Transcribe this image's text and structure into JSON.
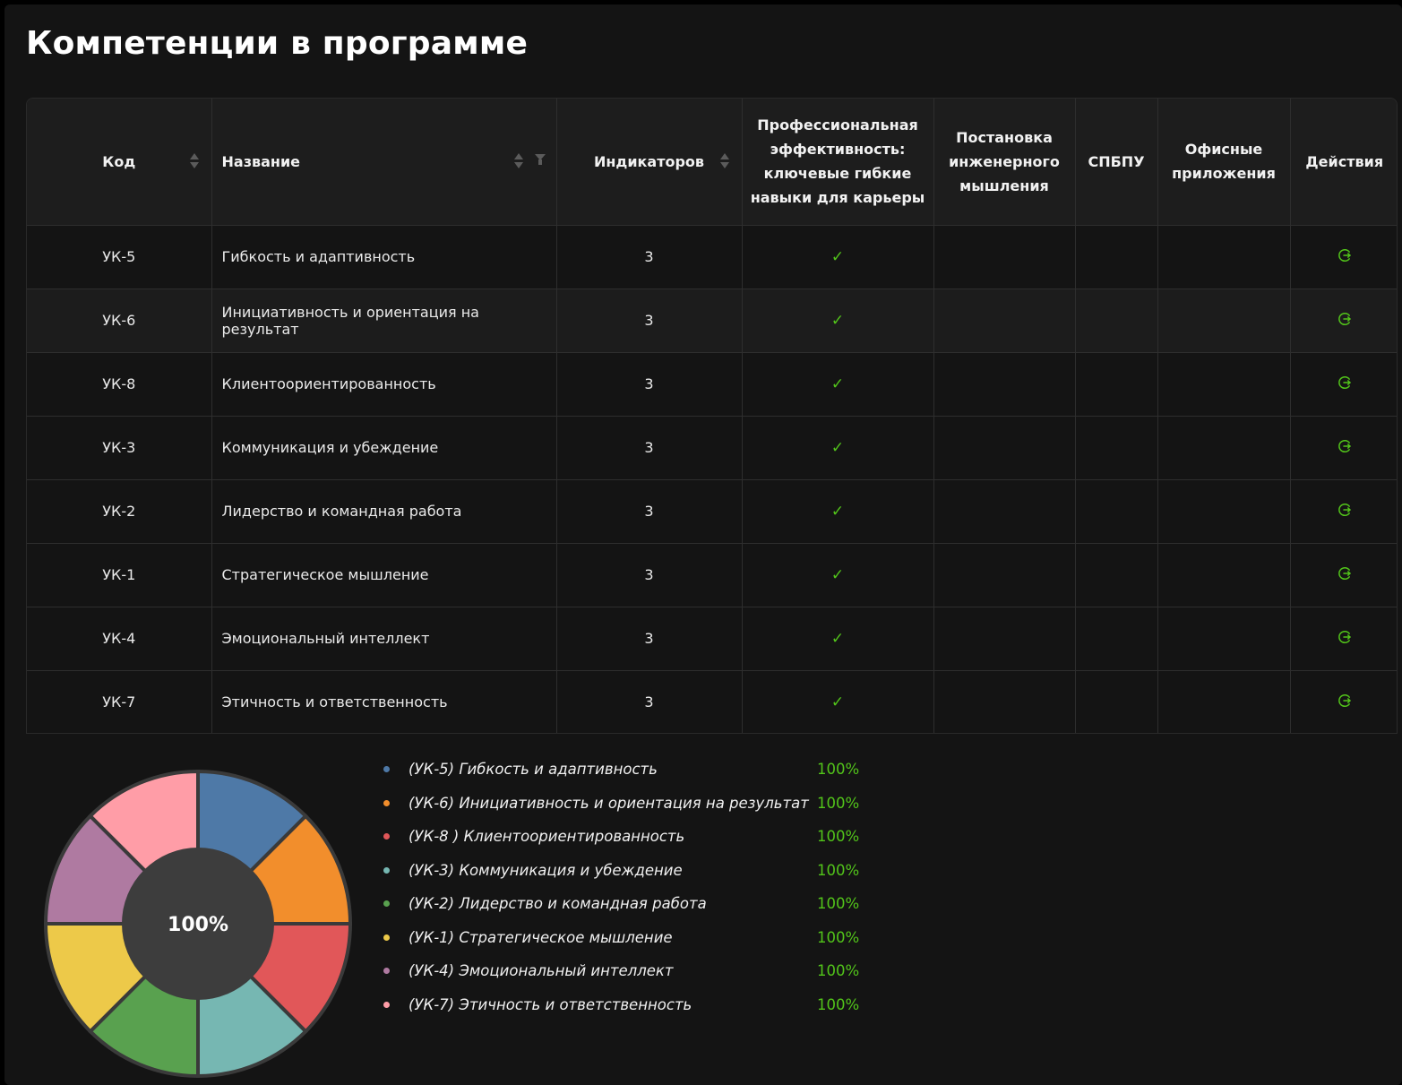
{
  "page_title": "Компетенции в программе",
  "table": {
    "headers": {
      "code": "Код",
      "name": "Название",
      "indicators": "Индикаторов",
      "course1": "Профессиональная эффективность: ключевые гибкие навыки для карьеры",
      "course2": "Постановка инженерного мышления",
      "course3": "СПБПУ",
      "course4": "Офисные приложения",
      "actions": "Действия"
    },
    "rows": [
      {
        "code": "УК-5",
        "name": "Гибкость и адаптивность",
        "indicators": "3",
        "course1": true
      },
      {
        "code": "УК-6",
        "name": "Инициативность и ориентация на результат",
        "indicators": "3",
        "course1": true
      },
      {
        "code": "УК-8",
        "name": "Клиентоориентированность",
        "indicators": "3",
        "course1": true
      },
      {
        "code": "УК-3",
        "name": "Коммуникация и убеждение",
        "indicators": "3",
        "course1": true
      },
      {
        "code": "УК-2",
        "name": "Лидерство и командная работа",
        "indicators": "3",
        "course1": true
      },
      {
        "code": "УК-1",
        "name": "Стратегическое мышление",
        "indicators": "3",
        "course1": true
      },
      {
        "code": "УК-4",
        "name": "Эмоциональный интеллект",
        "indicators": "3",
        "course1": true
      },
      {
        "code": "УК-7",
        "name": "Этичность и ответственность",
        "indicators": "3",
        "course1": true
      }
    ],
    "check_glyph": "✓",
    "action_icon": "logout-circle-icon"
  },
  "colors": {
    "accent_green": "#52c41a"
  },
  "chart_data": {
    "type": "pie",
    "center_label": "100%",
    "categories": [
      "(УК-5) Гибкость и адаптивность",
      "(УК-6) Инициативность и ориентация на результат",
      "(УК-8 ) Клиентоориентированность",
      "(УК-3) Коммуникация и убеждение",
      "(УК-2) Лидерство и командная работа",
      "(УК-1) Стратегическое мышление",
      "(УК-4) Эмоциональный интеллект",
      "(УК-7) Этичность и ответственность"
    ],
    "values": [
      1,
      1,
      1,
      1,
      1,
      1,
      1,
      1
    ],
    "percent_labels": [
      "100%",
      "100%",
      "100%",
      "100%",
      "100%",
      "100%",
      "100%",
      "100%"
    ],
    "colors": [
      "#4e79a7",
      "#f28e2c",
      "#e15759",
      "#76b7b2",
      "#59a14f",
      "#edc949",
      "#af7aa1",
      "#ff9da7"
    ],
    "legend_position": "right"
  }
}
